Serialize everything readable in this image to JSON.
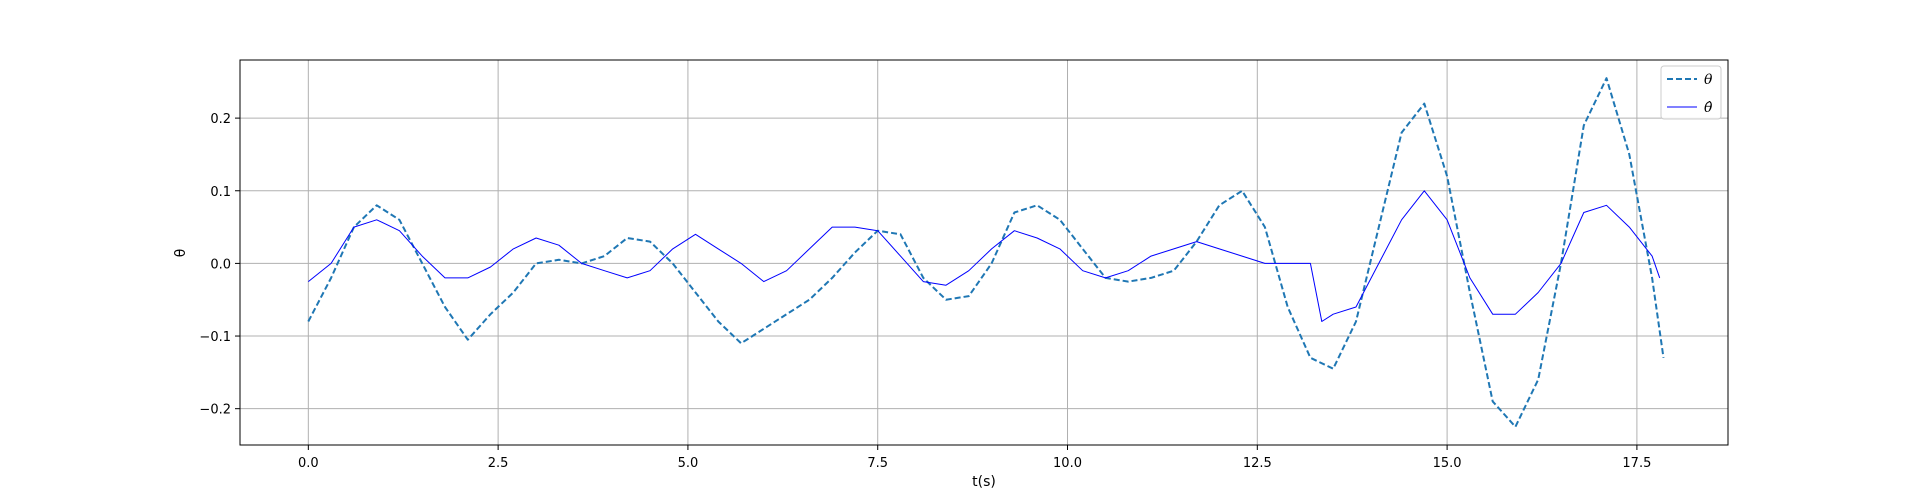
{
  "chart_data": {
    "type": "line",
    "title": "",
    "xlabel": "t(s)",
    "ylabel": "θ",
    "xlim": [
      -0.9,
      18.7
    ],
    "ylim": [
      -0.25,
      0.28
    ],
    "x_ticks": [
      0.0,
      2.5,
      5.0,
      7.5,
      10.0,
      12.5,
      15.0,
      17.5
    ],
    "x_tick_labels": [
      "0.0",
      "2.5",
      "5.0",
      "7.5",
      "10.0",
      "12.5",
      "15.0",
      "17.5"
    ],
    "y_ticks": [
      -0.2,
      -0.1,
      0.0,
      0.1,
      0.2
    ],
    "y_tick_labels": [
      "−0.2",
      "−0.1",
      "0.0",
      "0.1",
      "0.2"
    ],
    "grid": true,
    "legend_position": "top-right",
    "series": [
      {
        "name": "θ",
        "style": "dashed",
        "color": "#1f77b4",
        "x": [
          0.0,
          0.3,
          0.6,
          0.9,
          1.2,
          1.5,
          1.8,
          2.1,
          2.4,
          2.7,
          3.0,
          3.3,
          3.6,
          3.9,
          4.2,
          4.5,
          4.8,
          5.1,
          5.4,
          5.7,
          6.0,
          6.3,
          6.6,
          6.9,
          7.2,
          7.5,
          7.8,
          8.1,
          8.4,
          8.7,
          9.0,
          9.3,
          9.6,
          9.9,
          10.2,
          10.5,
          10.8,
          11.1,
          11.4,
          11.7,
          12.0,
          12.3,
          12.6,
          12.9,
          13.2,
          13.5,
          13.8,
          14.1,
          14.4,
          14.7,
          15.0,
          15.3,
          15.6,
          15.9,
          16.2,
          16.5,
          16.8,
          17.1,
          17.4,
          17.7,
          17.85
        ],
        "values": [
          -0.08,
          -0.02,
          0.05,
          0.08,
          0.06,
          0.0,
          -0.06,
          -0.105,
          -0.07,
          -0.04,
          0.0,
          0.005,
          0.0,
          0.01,
          0.035,
          0.03,
          0.0,
          -0.04,
          -0.08,
          -0.11,
          -0.09,
          -0.07,
          -0.05,
          -0.02,
          0.015,
          0.045,
          0.04,
          -0.02,
          -0.05,
          -0.045,
          0.0,
          0.07,
          0.08,
          0.06,
          0.02,
          -0.02,
          -0.025,
          -0.02,
          -0.01,
          0.03,
          0.08,
          0.1,
          0.05,
          -0.06,
          -0.13,
          -0.145,
          -0.08,
          0.05,
          0.18,
          0.22,
          0.12,
          -0.04,
          -0.19,
          -0.225,
          -0.16,
          0.0,
          0.19,
          0.255,
          0.15,
          -0.02,
          -0.13
        ]
      },
      {
        "name": "θ̂",
        "style": "solid",
        "color": "#0000ff",
        "x": [
          0.0,
          0.3,
          0.6,
          0.9,
          1.2,
          1.5,
          1.8,
          2.1,
          2.4,
          2.7,
          3.0,
          3.3,
          3.6,
          3.9,
          4.2,
          4.5,
          4.8,
          5.1,
          5.4,
          5.7,
          6.0,
          6.3,
          6.6,
          6.9,
          7.2,
          7.5,
          7.8,
          8.1,
          8.4,
          8.7,
          9.0,
          9.3,
          9.6,
          9.9,
          10.2,
          10.5,
          10.8,
          11.1,
          11.4,
          11.7,
          12.0,
          12.3,
          12.6,
          12.9,
          13.2,
          13.35,
          13.5,
          13.8,
          14.1,
          14.4,
          14.7,
          15.0,
          15.3,
          15.6,
          15.9,
          16.2,
          16.5,
          16.8,
          17.1,
          17.4,
          17.7,
          17.8
        ],
        "values": [
          -0.025,
          0.0,
          0.05,
          0.06,
          0.045,
          0.01,
          -0.02,
          -0.02,
          -0.005,
          0.02,
          0.035,
          0.025,
          0.0,
          -0.01,
          -0.02,
          -0.01,
          0.02,
          0.04,
          0.02,
          0.0,
          -0.025,
          -0.01,
          0.02,
          0.05,
          0.05,
          0.045,
          0.01,
          -0.025,
          -0.03,
          -0.01,
          0.02,
          0.045,
          0.035,
          0.02,
          -0.01,
          -0.02,
          -0.01,
          0.01,
          0.02,
          0.03,
          0.02,
          0.01,
          0.0,
          0.0,
          0.0,
          -0.08,
          -0.07,
          -0.06,
          0.0,
          0.06,
          0.1,
          0.06,
          -0.02,
          -0.07,
          -0.07,
          -0.04,
          0.0,
          0.07,
          0.08,
          0.05,
          0.01,
          -0.02
        ]
      }
    ]
  }
}
